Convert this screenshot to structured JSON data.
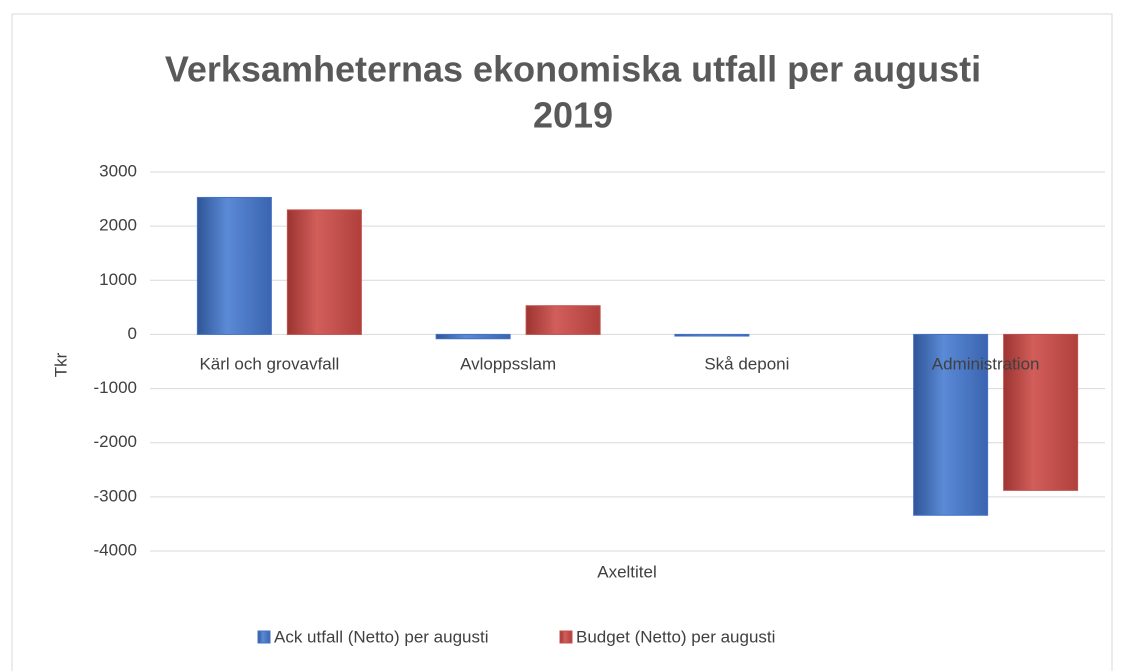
{
  "chart_data": {
    "type": "bar",
    "title": [
      "Verksamheternas ekonomiska utfall per augusti",
      "2019"
    ],
    "categories": [
      "Kärl och grovavfall",
      "Avloppsslam",
      "Skå deponi",
      "Administration"
    ],
    "series": [
      {
        "name": "Ack utfall (Netto) per augusti",
        "color": "#4472c4",
        "values": [
          2530,
          -80,
          -30,
          -3340
        ]
      },
      {
        "name": "Budget (Netto) per augusti",
        "color": "#c0504d",
        "values": [
          2300,
          530,
          0,
          -2880
        ]
      }
    ],
    "y_label": "Tkr",
    "x_label": "Axeltitel",
    "ylim": [
      -4000,
      3000
    ],
    "yticks": [
      3000,
      2000,
      1000,
      0,
      -1000,
      -2000,
      -3000,
      -4000
    ],
    "grid": true,
    "legend": "bottom"
  }
}
